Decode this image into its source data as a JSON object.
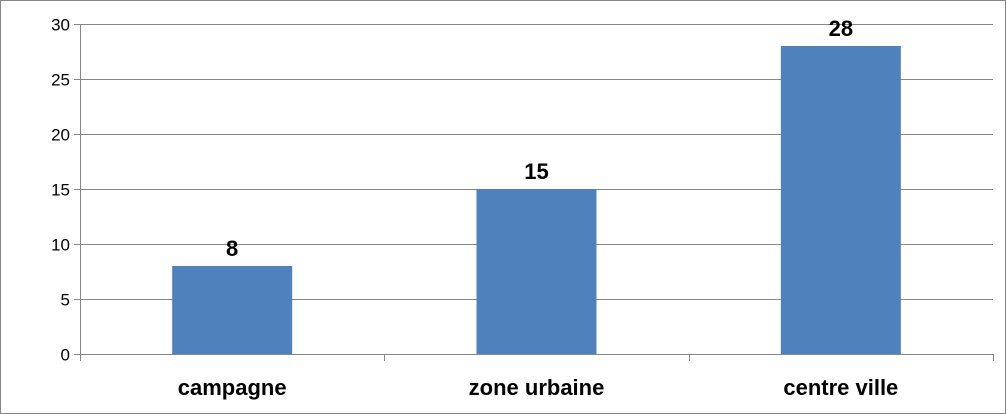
{
  "colors": {
    "bar": "#4f81bd",
    "grid": "#868686",
    "axis": "#868686",
    "border": "#868686"
  },
  "chart_data": {
    "type": "bar",
    "categories": [
      "campagne",
      "zone urbaine",
      "centre ville"
    ],
    "values": [
      8,
      15,
      28
    ],
    "data_labels": [
      "8",
      "15",
      "28"
    ],
    "y_ticks": [
      "0",
      "5",
      "10",
      "15",
      "20",
      "25",
      "30"
    ],
    "ylim": [
      0,
      30
    ],
    "title": "",
    "xlabel": "",
    "ylabel": "",
    "grid": true,
    "legend": "none"
  }
}
